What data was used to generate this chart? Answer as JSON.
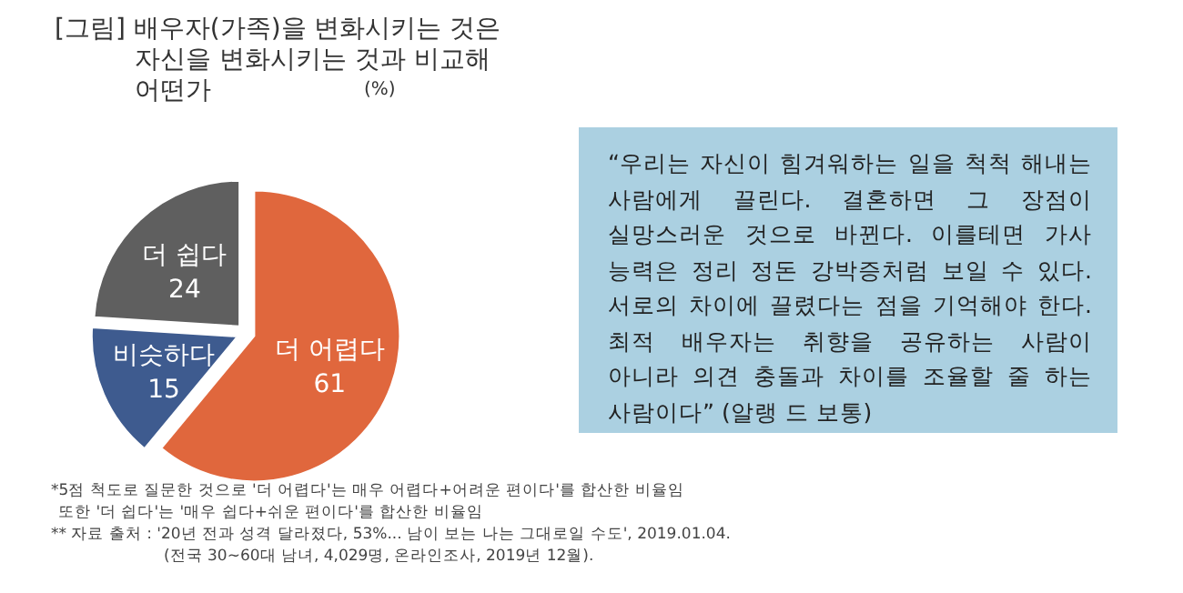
{
  "chart_data": [
    {
      "type": "pie",
      "title": "[그림] 배우자(가족)을 변화시키는 것은 자신을 변화시키는 것과 비교해 어떤가",
      "subtitle": "(%)",
      "categories": [
        "더 어렵다",
        "비슷하다",
        "더 쉽다"
      ],
      "values": [
        61,
        15,
        24
      ],
      "colors": [
        "#e0673d",
        "#3e5b8f",
        "#5f5f5f"
      ],
      "data_labels": true,
      "annotations": [
        "*5점 척도로 질문한 것으로 '더 어렵다'는 매우 어렵다+어려운 편이다'를 합산한 비율임",
        "또한 '더 쉽다'는 '매우 쉽다+쉬운 편이다'를 합산한 비율임",
        "** 자료 출처 : '20년 전과 성격 달라졌다, 53%... 남이 보는 나는 그대로일 수도', 2019.01.04.",
        "(전국 30~60대 남녀, 4,029명, 온라인조사, 2019년 12월)."
      ]
    },
    {
      "type": "other",
      "annotations": [
        "“우리는 자신이 힘겨워하는 일을 척척 해내는 사람에게 끌린다. 결혼하면 그 장점이 실망스러운 것으로 바뀐다. 이를테면 가사 능력은 정리 정돈 강박증처럼 보일 수 있다. 서로의 차이에 끌렸다는 점을 기억해야 한다. 최적 배우자는 취향을 공유하는 사람이 아니라 의견 충돌과 차이를 조율할 줄 하는 사람이다” (알랭 드 보통)"
      ]
    }
  ]
}
